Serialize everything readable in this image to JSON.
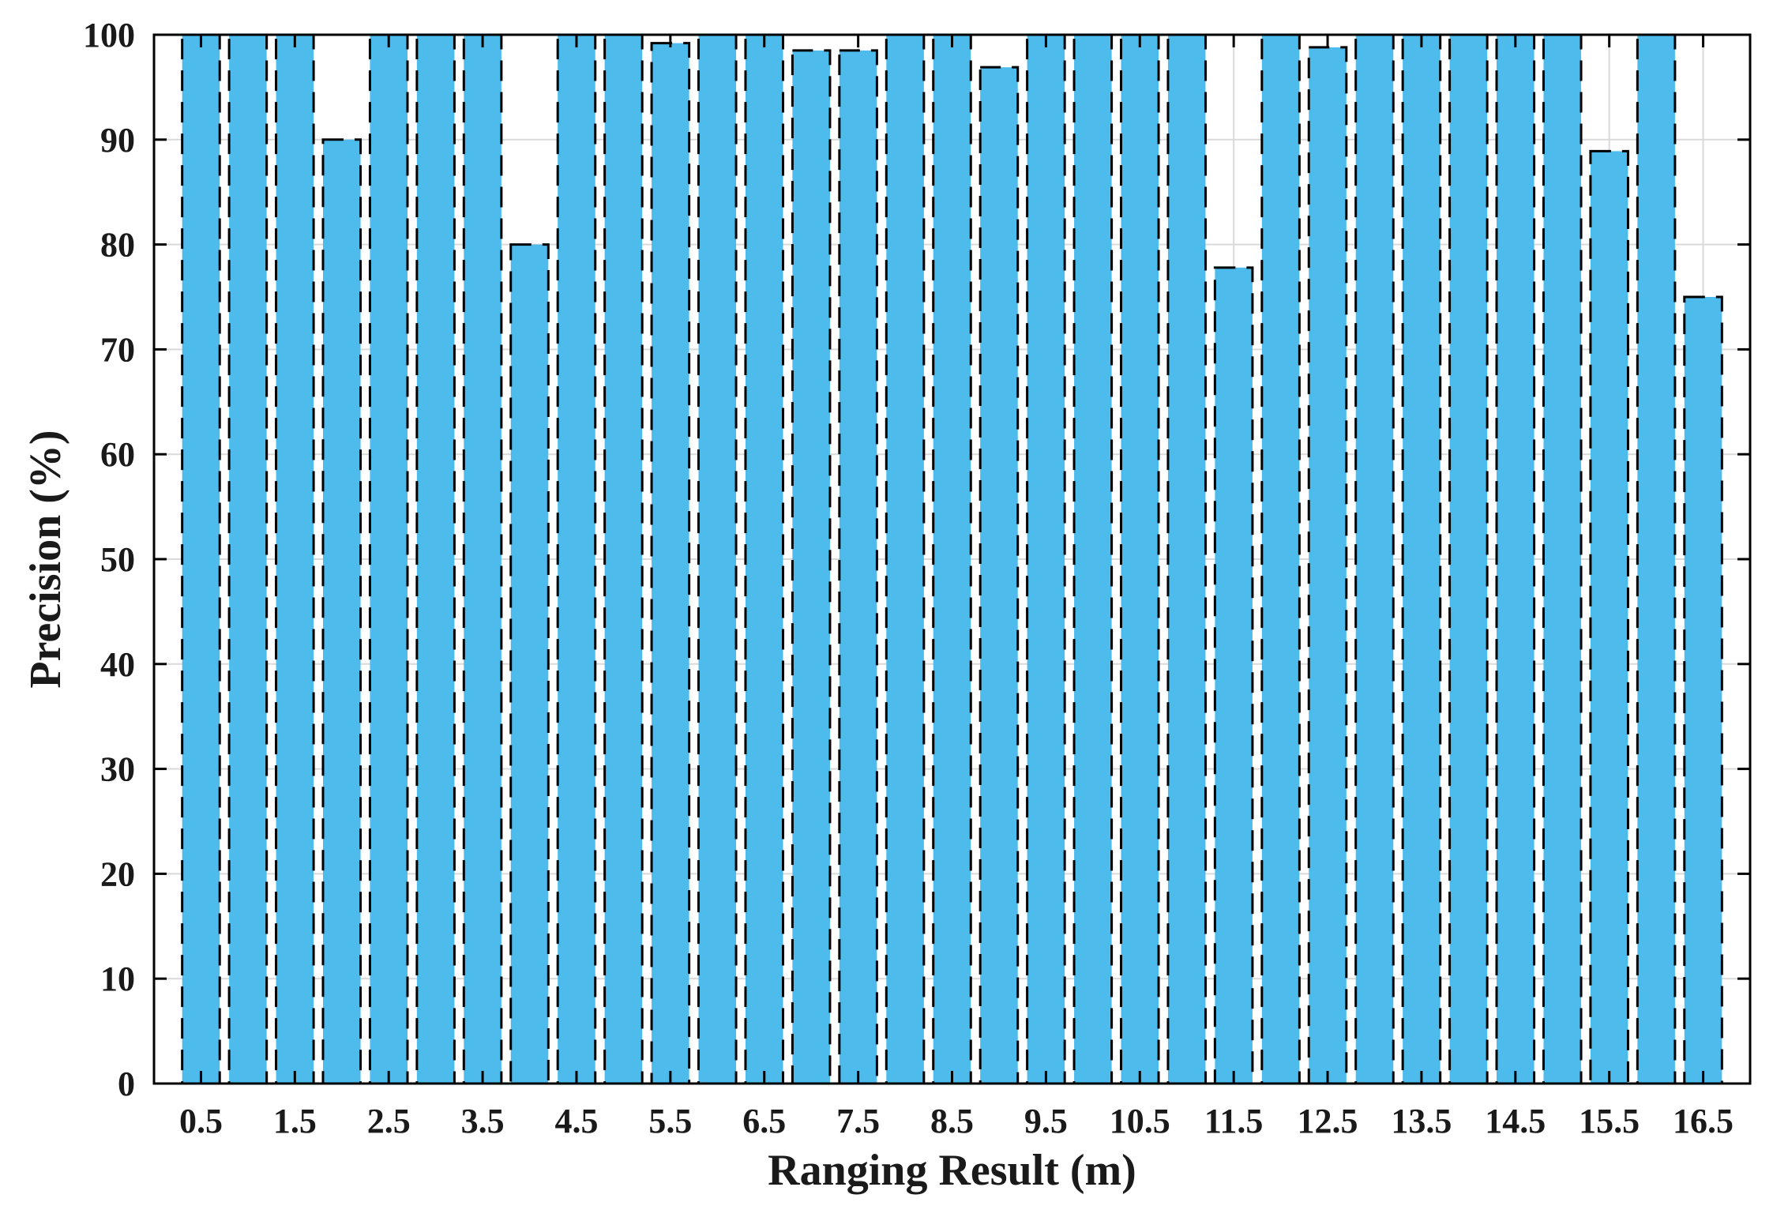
{
  "chart_data": {
    "type": "bar",
    "xlabel": "Ranging Result (m)",
    "ylabel": "Precision  (%)",
    "ylim": [
      0,
      100
    ],
    "yticks": [
      0,
      10,
      20,
      30,
      40,
      50,
      60,
      70,
      80,
      90,
      100
    ],
    "x": [
      0.5,
      1.0,
      1.5,
      2.0,
      2.5,
      3.0,
      3.5,
      4.0,
      4.5,
      5.0,
      5.5,
      6.0,
      6.5,
      7.0,
      7.5,
      8.0,
      8.5,
      9.0,
      9.5,
      10.0,
      10.5,
      11.0,
      11.5,
      12.0,
      12.5,
      13.0,
      13.5,
      14.0,
      14.5,
      15.0,
      15.5,
      16.0,
      16.5
    ],
    "xtick_labels": [
      "0.5",
      "1.5",
      "2.5",
      "3.5",
      "4.5",
      "5.5",
      "6.5",
      "7.5",
      "8.5",
      "9.5",
      "10.5",
      "11.5",
      "12.5",
      "13.5",
      "14.5",
      "15.5",
      "16.5"
    ],
    "values": [
      100,
      100,
      100,
      90,
      100,
      100,
      100,
      80,
      100,
      100,
      99.2,
      100,
      100,
      98.5,
      98.5,
      100,
      100,
      96.9,
      100,
      100,
      100,
      100,
      77.8,
      100,
      98.8,
      100,
      100,
      100,
      100,
      100,
      88.9,
      100,
      75
    ],
    "bar_color": "#4DBBEC",
    "edge_color": "#000000",
    "edge_style": "dashed",
    "grid": true
  }
}
